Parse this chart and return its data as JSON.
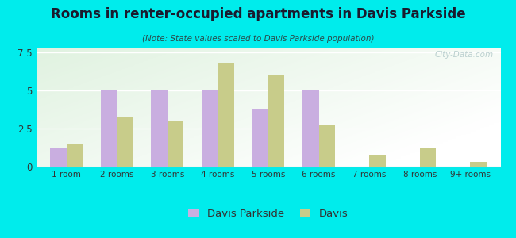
{
  "title": "Rooms in renter-occupied apartments in Davis Parkside",
  "subtitle": "(Note: State values scaled to Davis Parkside population)",
  "categories": [
    "1 room",
    "2 rooms",
    "3 rooms",
    "4 rooms",
    "5 rooms",
    "6 rooms",
    "7 rooms",
    "8 rooms",
    "9+ rooms"
  ],
  "davis_parkside": [
    1.2,
    5.0,
    5.0,
    5.0,
    3.8,
    5.0,
    0.0,
    0.0,
    0.0
  ],
  "davis": [
    1.5,
    3.3,
    3.0,
    6.8,
    6.0,
    2.7,
    0.8,
    1.2,
    0.3
  ],
  "davis_parkside_color": "#c9aee0",
  "davis_color": "#c8cc8a",
  "bg_outer": "#00ecec",
  "ylim": [
    0,
    7.8
  ],
  "yticks": [
    0,
    2.5,
    5,
    7.5
  ],
  "bar_width": 0.32,
  "legend_labels": [
    "Davis Parkside",
    "Davis"
  ],
  "title_color": "#1a1a2e",
  "subtitle_color": "#2a4a4a"
}
